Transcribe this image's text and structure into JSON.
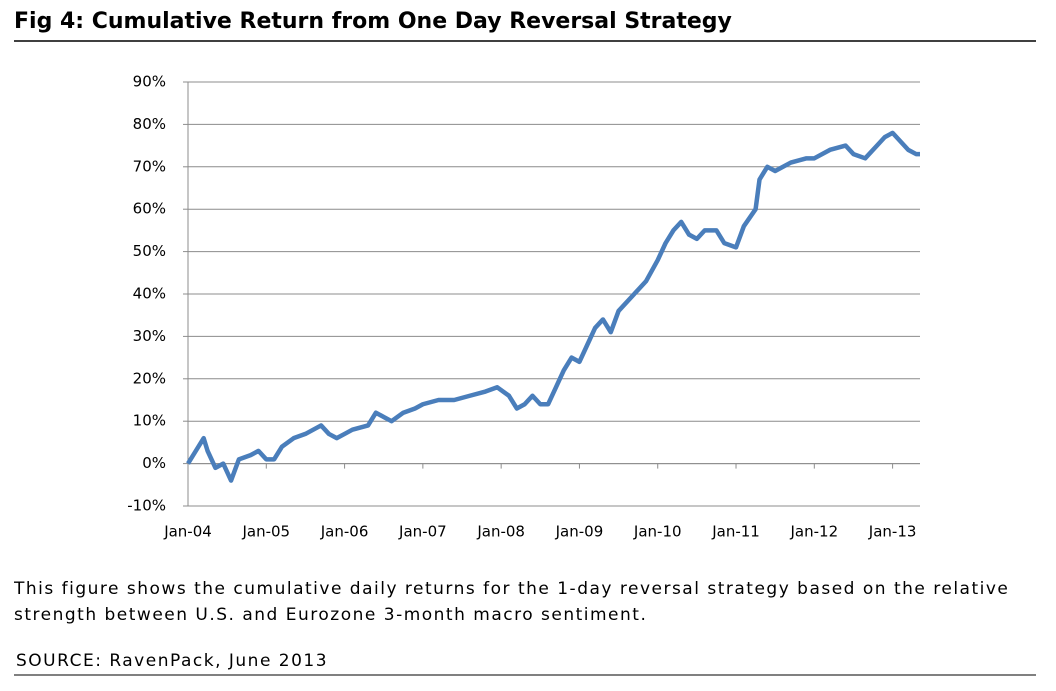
{
  "chart_data": {
    "type": "line",
    "title": "Fig 4: Cumulative Return from One Day Reversal Strategy",
    "caption": "This figure shows the cumulative daily returns for the 1-day reversal strategy based on the relative strength between U.S. and Eurozone 3-month macro sentiment.",
    "source": "SOURCE: RavenPack, June 2013",
    "x": [
      2004.0,
      2004.1,
      2004.2,
      2004.25,
      2004.35,
      2004.45,
      2004.55,
      2004.65,
      2004.8,
      2004.9,
      2005.0,
      2005.1,
      2005.2,
      2005.35,
      2005.5,
      2005.6,
      2005.7,
      2005.8,
      2005.9,
      2006.0,
      2006.1,
      2006.3,
      2006.4,
      2006.5,
      2006.6,
      2006.75,
      2006.9,
      2007.0,
      2007.2,
      2007.4,
      2007.6,
      2007.8,
      2007.95,
      2008.1,
      2008.2,
      2008.3,
      2008.4,
      2008.5,
      2008.6,
      2008.7,
      2008.8,
      2008.9,
      2009.0,
      2009.1,
      2009.2,
      2009.3,
      2009.4,
      2009.5,
      2009.7,
      2009.85,
      2010.0,
      2010.1,
      2010.2,
      2010.3,
      2010.4,
      2010.5,
      2010.6,
      2010.75,
      2010.85,
      2011.0,
      2011.1,
      2011.25,
      2011.3,
      2011.4,
      2011.5,
      2011.7,
      2011.9,
      2012.0,
      2012.2,
      2012.4,
      2012.5,
      2012.65,
      2012.8,
      2012.9,
      2013.0,
      2013.1,
      2013.2,
      2013.3,
      2013.35
    ],
    "series": [
      {
        "name": "Cumulative Return",
        "color": "#4a7ebb",
        "values": [
          0,
          3,
          6,
          3,
          -1,
          0,
          -4,
          1,
          2,
          3,
          1,
          1,
          4,
          6,
          7,
          8,
          9,
          7,
          6,
          7,
          8,
          9,
          12,
          11,
          10,
          12,
          13,
          14,
          15,
          15,
          16,
          17,
          18,
          16,
          13,
          14,
          16,
          14,
          14,
          18,
          22,
          25,
          24,
          28,
          32,
          34,
          31,
          36,
          40,
          43,
          48,
          52,
          55,
          57,
          54,
          53,
          55,
          55,
          52,
          51,
          56,
          60,
          67,
          70,
          69,
          71,
          72,
          72,
          74,
          75,
          73,
          72,
          75,
          77,
          78,
          76,
          74,
          73,
          73
        ]
      }
    ],
    "xlim": [
      2004.0,
      2013.35
    ],
    "xticks": [
      {
        "value": 2004,
        "label": "Jan-04"
      },
      {
        "value": 2005,
        "label": "Jan-05"
      },
      {
        "value": 2006,
        "label": "Jan-06"
      },
      {
        "value": 2007,
        "label": "Jan-07"
      },
      {
        "value": 2008,
        "label": "Jan-08"
      },
      {
        "value": 2009,
        "label": "Jan-09"
      },
      {
        "value": 2010,
        "label": "Jan-10"
      },
      {
        "value": 2011,
        "label": "Jan-11"
      },
      {
        "value": 2012,
        "label": "Jan-12"
      },
      {
        "value": 2013,
        "label": "Jan-13"
      }
    ],
    "ylim": [
      -10,
      90
    ],
    "yticks": [
      {
        "value": -10,
        "label": "-10%"
      },
      {
        "value": 0,
        "label": "0%"
      },
      {
        "value": 10,
        "label": "10%"
      },
      {
        "value": 20,
        "label": "20%"
      },
      {
        "value": 30,
        "label": "30%"
      },
      {
        "value": 40,
        "label": "40%"
      },
      {
        "value": 50,
        "label": "50%"
      },
      {
        "value": 60,
        "label": "60%"
      },
      {
        "value": 70,
        "label": "70%"
      },
      {
        "value": 80,
        "label": "80%"
      },
      {
        "value": 90,
        "label": "90%"
      }
    ],
    "grid": true
  }
}
